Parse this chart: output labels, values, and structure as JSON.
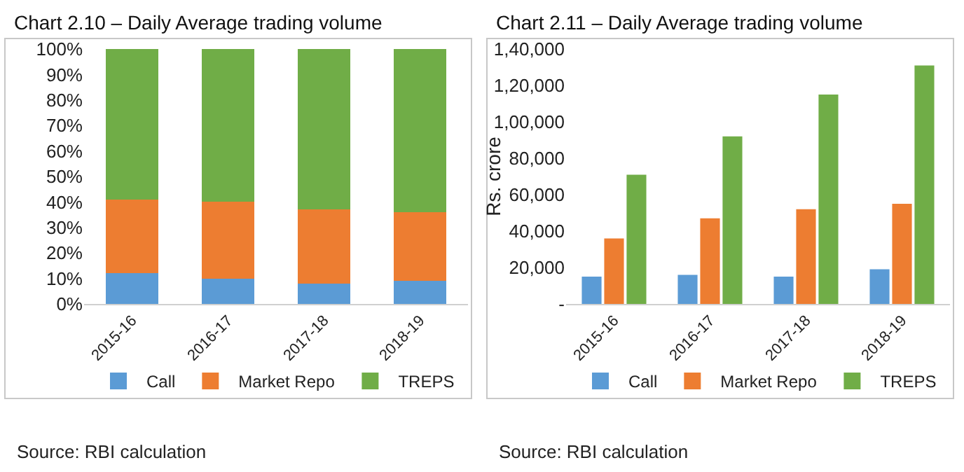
{
  "chart_data": [
    {
      "type": "bar",
      "title": "Chart 2.10 – Daily Average trading volume",
      "categories": [
        "2015-16",
        "2016-17",
        "2017-18",
        "2018-19"
      ],
      "stacked": true,
      "series": [
        {
          "name": "Call",
          "color": "#5b9bd5",
          "values": [
            12,
            10,
            8,
            9
          ]
        },
        {
          "name": "Market Repo",
          "color": "#ed7d31",
          "values": [
            29,
            30,
            29,
            27
          ]
        },
        {
          "name": "TREPS",
          "color": "#70ad47",
          "values": [
            59,
            60,
            63,
            64
          ]
        }
      ],
      "ylim": [
        0,
        100
      ],
      "yticks": [
        {
          "value": 0,
          "label": "0%"
        },
        {
          "value": 10,
          "label": "10%"
        },
        {
          "value": 20,
          "label": "20%"
        },
        {
          "value": 30,
          "label": "30%"
        },
        {
          "value": 40,
          "label": "40%"
        },
        {
          "value": 50,
          "label": "50%"
        },
        {
          "value": 60,
          "label": "60%"
        },
        {
          "value": 70,
          "label": "70%"
        },
        {
          "value": 80,
          "label": "80%"
        },
        {
          "value": 90,
          "label": "90%"
        },
        {
          "value": 100,
          "label": "100%"
        }
      ],
      "legend": "bottom",
      "annotations": [
        "Source: RBI calculation"
      ]
    },
    {
      "type": "bar",
      "title": "Chart 2.11 – Daily Average trading volume",
      "ylabel": "Rs. crore",
      "categories": [
        "2015-16",
        "2016-17",
        "2017-18",
        "2018-19"
      ],
      "series": [
        {
          "name": "Call",
          "color": "#5b9bd5",
          "values": [
            15000,
            16000,
            15000,
            19000
          ]
        },
        {
          "name": "Market Repo",
          "color": "#ed7d31",
          "values": [
            36000,
            47000,
            52000,
            55000
          ]
        },
        {
          "name": "TREPS",
          "color": "#70ad47",
          "values": [
            71000,
            92000,
            115000,
            131000
          ]
        }
      ],
      "ylim": [
        0,
        140000
      ],
      "yticks": [
        {
          "value": 0,
          "label": "-"
        },
        {
          "value": 20000,
          "label": "20,000"
        },
        {
          "value": 40000,
          "label": "40,000"
        },
        {
          "value": 60000,
          "label": "60,000"
        },
        {
          "value": 80000,
          "label": "80,000"
        },
        {
          "value": 100000,
          "label": "1,00,000"
        },
        {
          "value": 120000,
          "label": "1,20,000"
        },
        {
          "value": 140000,
          "label": "1,40,000"
        }
      ],
      "legend": "bottom",
      "annotations": [
        "Source: RBI calculation"
      ]
    }
  ]
}
